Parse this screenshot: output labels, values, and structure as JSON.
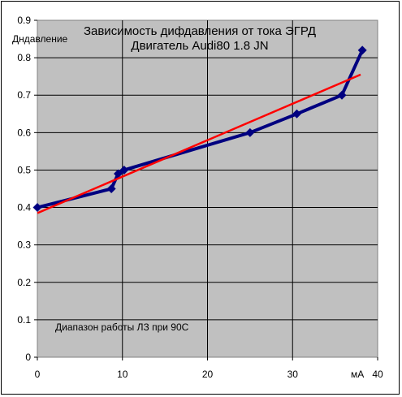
{
  "chart_data": {
    "type": "line",
    "title": "Зависимость дифдавления от тока ЭГРД",
    "subtitle": "Двигатель Audi80 1.8 JN",
    "ylabel": "Дндавление",
    "xlabel": "мА",
    "annotation": "Диапазон работы ЛЗ при 90С",
    "xlim": [
      0,
      40
    ],
    "ylim": [
      0,
      0.9
    ],
    "xticks": [
      "0",
      "10",
      "20",
      "30",
      "40"
    ],
    "yticks": [
      "0",
      "0.1",
      "0.2",
      "0.3",
      "0.4",
      "0.5",
      "0.6",
      "0.7",
      "0.8",
      "0.9"
    ],
    "grid": true,
    "plot_background": "#c0c0c0",
    "series": [
      {
        "color": "#000080",
        "marker": "diamond",
        "x": [
          0,
          8.7,
          9.5,
          10.2,
          25,
          30.5,
          35.8,
          38.2
        ],
        "y": [
          0.4,
          0.45,
          0.49,
          0.5,
          0.6,
          0.65,
          0.7,
          0.82
        ]
      }
    ],
    "trendline": {
      "color": "#ff0000",
      "x": [
        0,
        38
      ],
      "y": [
        0.385,
        0.755
      ]
    }
  }
}
